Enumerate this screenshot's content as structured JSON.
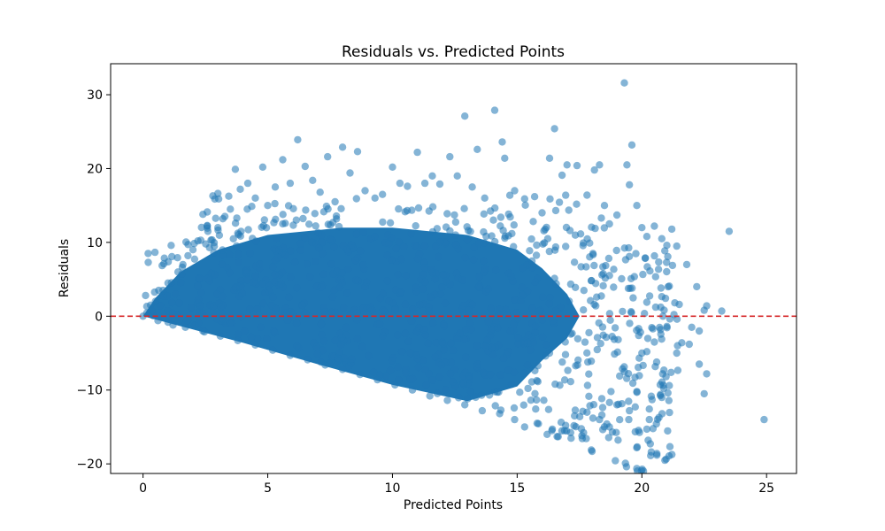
{
  "chart_data": {
    "type": "scatter",
    "title": "Residuals vs. Predicted Points",
    "xlabel": "Predicted Points",
    "ylabel": "Residuals",
    "xlim": [
      -1.3,
      26.2
    ],
    "ylim": [
      -21.3,
      34.2
    ],
    "xticks": [
      0,
      5,
      10,
      15,
      20,
      25
    ],
    "yticks": [
      -20,
      -10,
      0,
      10,
      20,
      30
    ],
    "xtick_labels": [
      "0",
      "5",
      "10",
      "15",
      "20",
      "25"
    ],
    "ytick_labels": [
      "−20",
      "−10",
      "0",
      "10",
      "20",
      "30"
    ],
    "grid": false,
    "legend": "none",
    "reference_line": {
      "y": 0,
      "style": "dashed",
      "color": "#d62728"
    },
    "series": [
      {
        "color": "#1f77b4",
        "alpha": 0.55,
        "points": [
          [
            0.0,
            0.0
          ],
          [
            0.1,
            2.8
          ],
          [
            0.3,
            1.5
          ],
          [
            0.5,
            2.0
          ],
          [
            0.6,
            -0.6
          ],
          [
            0.8,
            3.5
          ],
          [
            1.0,
            4.5
          ],
          [
            1.2,
            -1.2
          ],
          [
            1.4,
            6.0
          ],
          [
            1.6,
            7.0
          ],
          [
            1.8,
            8.2
          ],
          [
            2.0,
            9.0
          ],
          [
            2.2,
            10.2
          ],
          [
            2.4,
            13.8
          ],
          [
            2.6,
            11.5
          ],
          [
            2.8,
            16.3
          ],
          [
            3.0,
            12.0
          ],
          [
            3.2,
            13.2
          ],
          [
            3.5,
            14.5
          ],
          [
            3.7,
            19.9
          ],
          [
            3.9,
            17.2
          ],
          [
            4.2,
            18.0
          ],
          [
            4.5,
            16.0
          ],
          [
            4.8,
            20.2
          ],
          [
            5.0,
            15.0
          ],
          [
            5.3,
            17.5
          ],
          [
            5.6,
            21.2
          ],
          [
            5.9,
            18.0
          ],
          [
            6.2,
            23.9
          ],
          [
            6.5,
            20.3
          ],
          [
            6.8,
            18.4
          ],
          [
            7.1,
            16.8
          ],
          [
            7.4,
            21.6
          ],
          [
            7.7,
            15.5
          ],
          [
            8.0,
            22.9
          ],
          [
            8.3,
            19.4
          ],
          [
            8.6,
            22.3
          ],
          [
            8.9,
            17.0
          ],
          [
            9.3,
            16.0
          ],
          [
            9.6,
            16.5
          ],
          [
            10.0,
            20.2
          ],
          [
            10.3,
            18.0
          ],
          [
            10.6,
            17.6
          ],
          [
            11.0,
            22.2
          ],
          [
            11.3,
            18.0
          ],
          [
            11.6,
            19.0
          ],
          [
            11.9,
            17.9
          ],
          [
            12.3,
            21.6
          ],
          [
            12.6,
            19.0
          ],
          [
            12.9,
            27.1
          ],
          [
            13.2,
            17.5
          ],
          [
            13.4,
            22.6
          ],
          [
            13.7,
            16.0
          ],
          [
            14.1,
            27.9
          ],
          [
            14.4,
            23.6
          ],
          [
            14.5,
            21.4
          ],
          [
            14.9,
            17.0
          ],
          [
            15.3,
            15.9
          ],
          [
            15.7,
            16.2
          ],
          [
            16.0,
            14.0
          ],
          [
            16.3,
            21.4
          ],
          [
            16.5,
            25.4
          ],
          [
            16.8,
            19.1
          ],
          [
            17.0,
            20.5
          ],
          [
            17.4,
            20.4
          ],
          [
            17.8,
            16.4
          ],
          [
            18.1,
            19.8
          ],
          [
            18.3,
            20.5
          ],
          [
            18.5,
            15.0
          ],
          [
            18.7,
            12.5
          ],
          [
            19.0,
            13.7
          ],
          [
            19.3,
            31.6
          ],
          [
            19.4,
            20.5
          ],
          [
            19.5,
            17.8
          ],
          [
            19.6,
            23.2
          ],
          [
            19.8,
            15.0
          ],
          [
            20.0,
            12.0
          ],
          [
            20.2,
            10.8
          ],
          [
            20.5,
            12.2
          ],
          [
            20.8,
            10.5
          ],
          [
            21.0,
            9.6
          ],
          [
            21.2,
            11.8
          ],
          [
            21.4,
            9.5
          ],
          [
            21.8,
            7.0
          ],
          [
            22.2,
            4.0
          ],
          [
            22.5,
            0.8
          ],
          [
            23.2,
            0.7
          ],
          [
            23.5,
            11.5
          ],
          [
            22.0,
            -1.5
          ],
          [
            21.6,
            -3.6
          ],
          [
            21.4,
            -5.0
          ],
          [
            21.1,
            -9.4
          ],
          [
            20.8,
            -11.0
          ],
          [
            20.6,
            -18.6
          ],
          [
            20.3,
            -14.0
          ],
          [
            20.2,
            -15.3
          ],
          [
            19.8,
            -10.2
          ],
          [
            19.5,
            -12.8
          ],
          [
            19.0,
            -12.0
          ],
          [
            18.7,
            -15.0
          ],
          [
            18.3,
            -14.0
          ],
          [
            17.8,
            -13.0
          ],
          [
            17.3,
            -13.5
          ],
          [
            16.9,
            -15.5
          ],
          [
            16.6,
            -16.3
          ],
          [
            16.2,
            -16.0
          ],
          [
            15.8,
            -14.5
          ],
          [
            15.3,
            -15.0
          ],
          [
            14.9,
            -14.0
          ],
          [
            14.3,
            -13.2
          ],
          [
            13.6,
            -12.8
          ],
          [
            12.9,
            -12.0
          ],
          [
            12.2,
            -11.4
          ],
          [
            11.5,
            -10.8
          ],
          [
            10.8,
            -10.0
          ],
          [
            10.1,
            -9.3
          ],
          [
            9.4,
            -8.6
          ],
          [
            8.7,
            -7.9
          ],
          [
            8.0,
            -7.2
          ],
          [
            7.3,
            -6.6
          ],
          [
            6.6,
            -5.9
          ],
          [
            5.9,
            -5.3
          ],
          [
            5.2,
            -4.6
          ],
          [
            4.5,
            -3.9
          ],
          [
            3.8,
            -3.3
          ],
          [
            3.1,
            -2.7
          ],
          [
            2.4,
            -2.0
          ],
          [
            1.7,
            -1.5
          ],
          [
            1.0,
            -0.8
          ],
          [
            22.5,
            -10.5
          ],
          [
            22.6,
            -7.8
          ],
          [
            22.3,
            -6.5
          ],
          [
            21.9,
            -3.8
          ],
          [
            24.9,
            -14.0
          ],
          [
            22.6,
            1.4
          ],
          [
            21.5,
            1.6
          ],
          [
            22.3,
            -2.0
          ],
          [
            20.5,
            -3.5
          ],
          [
            20.0,
            -5.0
          ],
          [
            19.3,
            -7.5
          ]
        ]
      }
    ]
  }
}
